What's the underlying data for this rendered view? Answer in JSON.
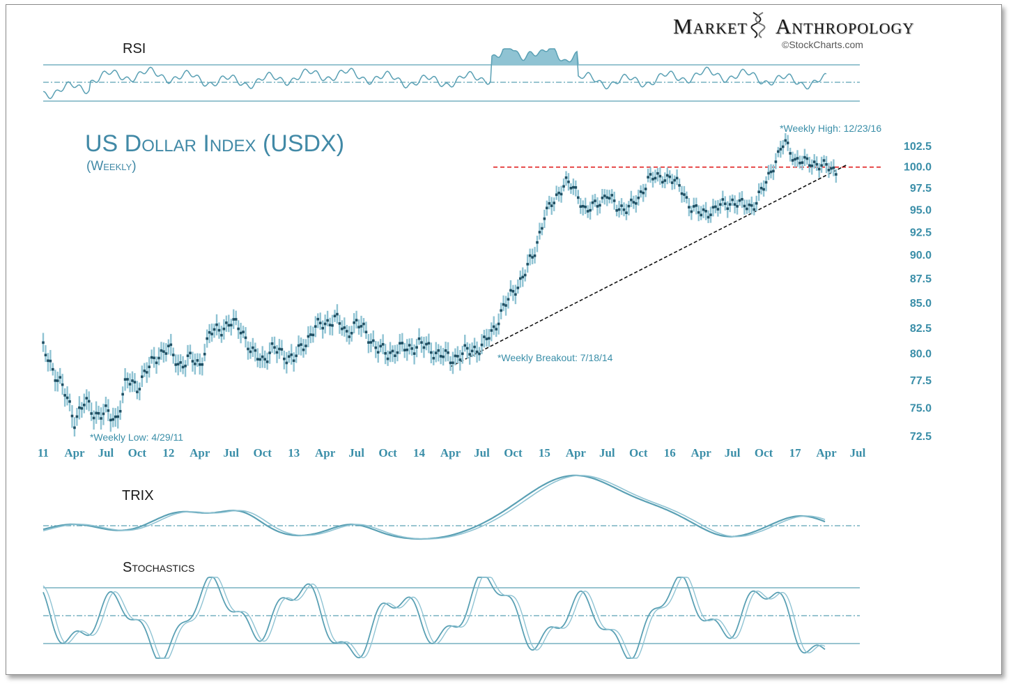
{
  "branding": {
    "word1": "Market",
    "word2": "Anthropology",
    "credit": "©StockCharts.com"
  },
  "chart_data": [
    {
      "type": "line",
      "title": "RSI",
      "reference_lines": [
        "upper",
        "middle (dash-dot)",
        "lower"
      ]
    },
    {
      "type": "candlestick",
      "title": "US Dollar Index (USDX)",
      "subtitle": "(Weekly)",
      "y_tick_labels": [
        "102.5",
        "100.0",
        "97.5",
        "95.0",
        "92.5",
        "90.0",
        "87.5",
        "85.0",
        "82.5",
        "80.0",
        "77.5",
        "75.0",
        "72.5"
      ],
      "y_ticks": [
        102.5,
        100,
        97.5,
        95,
        92.5,
        90,
        87.5,
        85,
        82.5,
        80,
        77.5,
        75,
        72.5
      ],
      "x_tick_labels": [
        "11",
        "Apr",
        "Jul",
        "Oct",
        "12",
        "Apr",
        "Jul",
        "Oct",
        "13",
        "Apr",
        "Jul",
        "Oct",
        "14",
        "Apr",
        "Jul",
        "Oct",
        "15",
        "Apr",
        "Jul",
        "Oct",
        "16",
        "Apr",
        "Jul",
        "Oct",
        "17",
        "Apr",
        "Jul"
      ],
      "x_range": [
        "2011-01",
        "2017-07"
      ],
      "series": [
        {
          "x": [
            "2011-01",
            "2011-02",
            "2011-03",
            "2011-04",
            "2011-05",
            "2011-06",
            "2011-07",
            "2011-08",
            "2011-09",
            "2011-10",
            "2011-11",
            "2011-12",
            "2012-01",
            "2012-02",
            "2012-03",
            "2012-04",
            "2012-05",
            "2012-06",
            "2012-07",
            "2012-08",
            "2012-09",
            "2012-10",
            "2012-11",
            "2012-12",
            "2013-01",
            "2013-02",
            "2013-03",
            "2013-04",
            "2013-05",
            "2013-06",
            "2013-07",
            "2013-08",
            "2013-09",
            "2013-10",
            "2013-11",
            "2013-12",
            "2014-01",
            "2014-02",
            "2014-03",
            "2014-04",
            "2014-05",
            "2014-06",
            "2014-07",
            "2014-08",
            "2014-09",
            "2014-10",
            "2014-11",
            "2014-12",
            "2015-01",
            "2015-02",
            "2015-03",
            "2015-04",
            "2015-05",
            "2015-06",
            "2015-07",
            "2015-08",
            "2015-09",
            "2015-10",
            "2015-11",
            "2015-12",
            "2016-01",
            "2016-02",
            "2016-03",
            "2016-04",
            "2016-05",
            "2016-06",
            "2016-07",
            "2016-08",
            "2016-09",
            "2016-10",
            "2016-11",
            "2016-12",
            "2017-01",
            "2017-02",
            "2017-03",
            "2017-04",
            "2017-05"
          ],
          "values": [
            80.5,
            78.5,
            76.5,
            74.0,
            75.5,
            74.5,
            74.5,
            74.0,
            77.5,
            77.0,
            78.5,
            80.0,
            80.5,
            79.0,
            79.5,
            79.0,
            82.0,
            82.5,
            83.0,
            82.5,
            80.0,
            79.5,
            80.5,
            80.0,
            79.5,
            81.0,
            82.5,
            83.0,
            83.5,
            82.0,
            83.0,
            82.0,
            80.5,
            80.0,
            80.5,
            80.5,
            81.0,
            80.5,
            80.0,
            79.5,
            80.0,
            80.3,
            80.8,
            82.0,
            84.5,
            86.0,
            88.0,
            90.0,
            94.5,
            96.0,
            98.5,
            97.0,
            95.0,
            95.5,
            97.0,
            95.0,
            95.5,
            96.0,
            99.0,
            98.5,
            99.0,
            97.5,
            95.5,
            94.5,
            95.0,
            95.5,
            96.0,
            95.5,
            95.5,
            97.5,
            100.5,
            103.0,
            101.0,
            100.5,
            100.5,
            100.0,
            99.5
          ]
        }
      ],
      "annotations": [
        {
          "text": "*Weekly Low: 4/29/11",
          "x": "2011-04-29",
          "y": 72.7
        },
        {
          "text": "*Weekly Breakout: 7/18/14",
          "x": "2014-07-18",
          "y": 80.5
        },
        {
          "text": "*Weekly High: 12/23/16",
          "x": "2016-12-23",
          "y": 103.0
        }
      ],
      "horizontal_line": {
        "y": 100.0,
        "color": "#e02020",
        "style": "dashed"
      },
      "trendline": {
        "from": [
          "2014-04",
          78.8
        ],
        "to": [
          "2017-06",
          100.3
        ],
        "color": "#111111",
        "style": "dashed"
      }
    },
    {
      "type": "line",
      "title": "TRIX",
      "series": [
        {
          "name": ""
        },
        {
          "name": ""
        }
      ]
    },
    {
      "type": "line",
      "title": "Stochastics",
      "series": [
        {
          "name": ""
        },
        {
          "name": ""
        }
      ]
    }
  ],
  "colors": {
    "accent": "#3a8ea8",
    "line": "#5aa0b4",
    "fill": "#8fc3d3",
    "candle_body": "#1f4f63",
    "title": "#4189a6",
    "frame": "#8a8a8a"
  }
}
